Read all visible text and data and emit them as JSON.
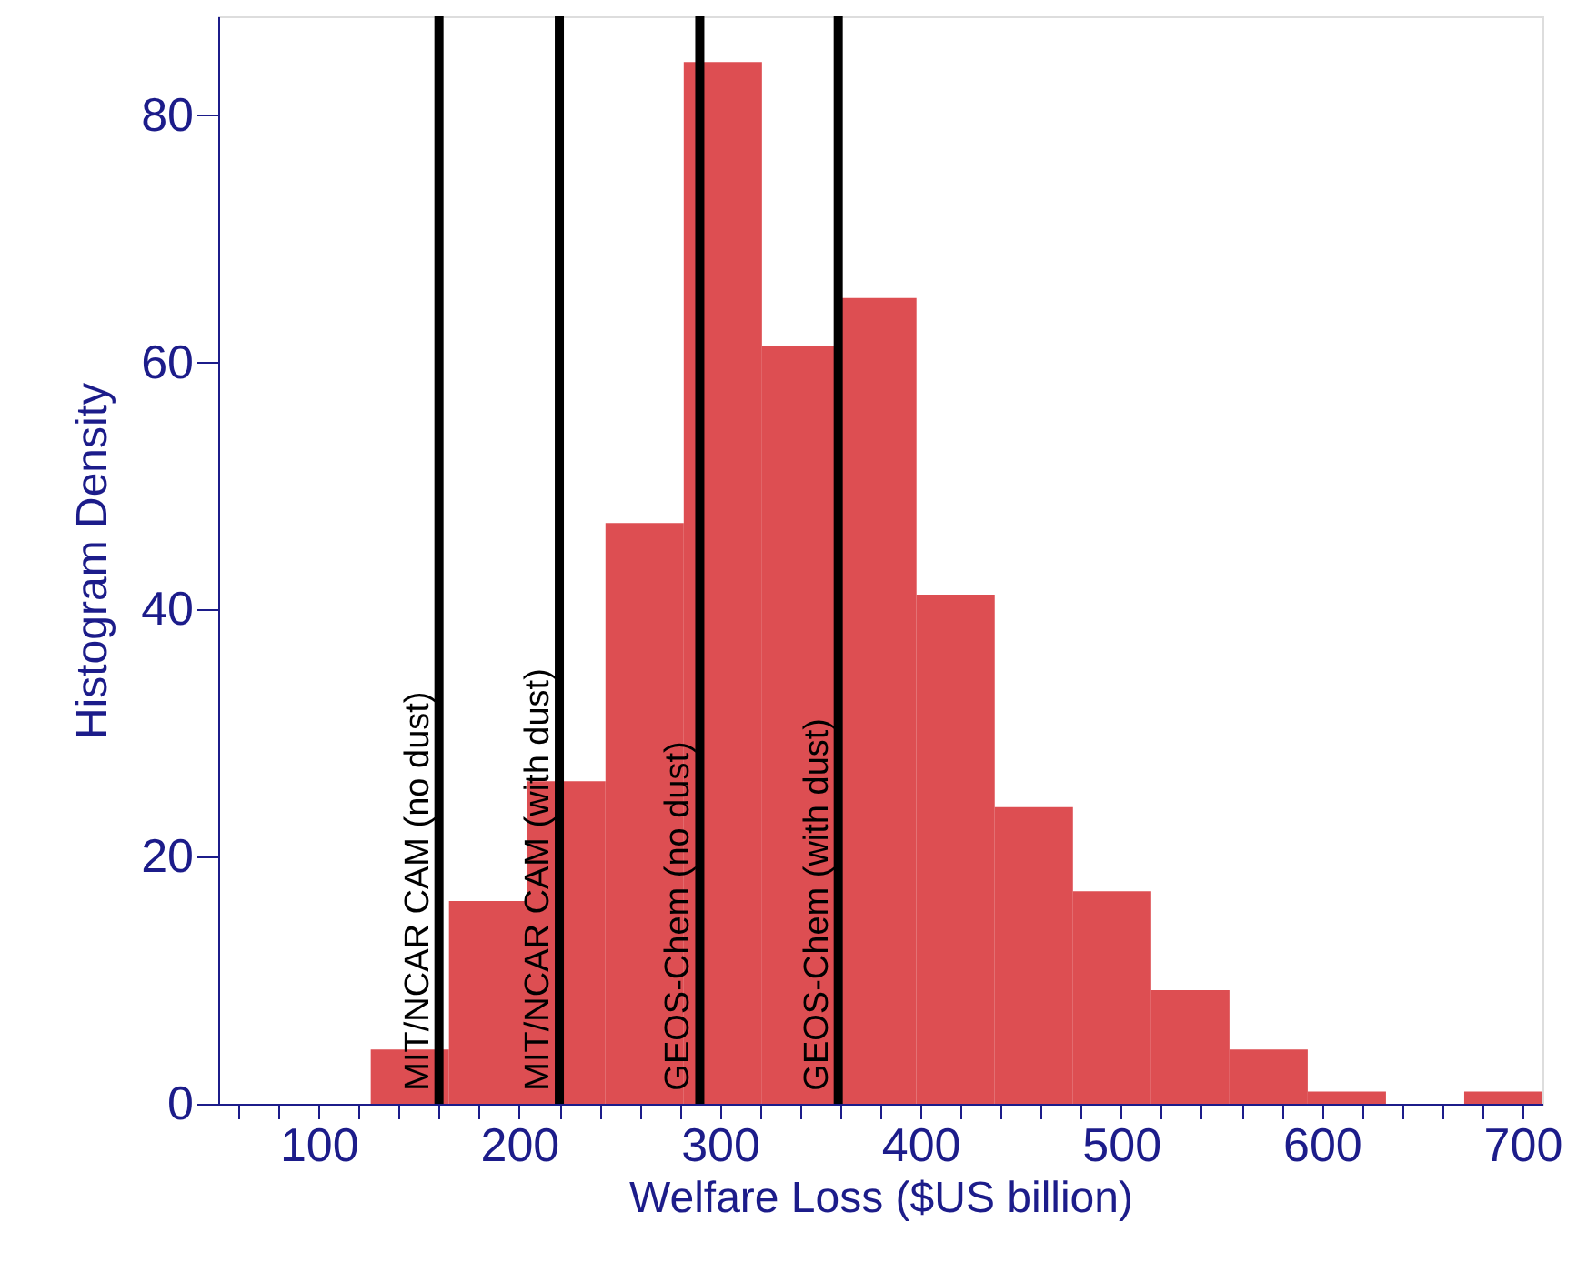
{
  "chart_data": {
    "type": "histogram",
    "xlabel": "Welfare Loss ($US billion)",
    "ylabel": "Histogram Density",
    "bins": [
      126,
      165,
      204,
      243,
      282,
      321,
      359,
      398,
      437,
      476,
      515,
      554,
      593,
      632,
      671,
      710
    ],
    "values": [
      4.4,
      16.4,
      26.1,
      47,
      84.3,
      61.3,
      65.2,
      41.2,
      24,
      17.2,
      9.2,
      4.4,
      1,
      0,
      1
    ],
    "color": "#dd4e52",
    "xlim": [
      50,
      710
    ],
    "ylim": [
      0,
      88
    ],
    "xticks": [
      {
        "value": 60,
        "label": null
      },
      {
        "value": 80,
        "label": null
      },
      100,
      {
        "value": 120,
        "label": null
      },
      {
        "value": 140,
        "label": null
      },
      {
        "value": 160,
        "label": null
      },
      {
        "value": 180,
        "label": null
      },
      200,
      {
        "value": 220,
        "label": null
      },
      {
        "value": 240,
        "label": null
      },
      {
        "value": 260,
        "label": null
      },
      {
        "value": 280,
        "label": null
      },
      300,
      {
        "value": 320,
        "label": null
      },
      {
        "value": 340,
        "label": null
      },
      {
        "value": 360,
        "label": null
      },
      {
        "value": 380,
        "label": null
      },
      400,
      {
        "value": 420,
        "label": null
      },
      {
        "value": 440,
        "label": null
      },
      {
        "value": 460,
        "label": null
      },
      {
        "value": 480,
        "label": null
      },
      500,
      {
        "value": 520,
        "label": null
      },
      {
        "value": 540,
        "label": null
      },
      {
        "value": 560,
        "label": null
      },
      {
        "value": 580,
        "label": null
      },
      600,
      {
        "value": 620,
        "label": null
      },
      {
        "value": 640,
        "label": null
      },
      {
        "value": 660,
        "label": null
      },
      {
        "value": 680,
        "label": null
      },
      700
    ],
    "yticks": [
      0,
      20,
      40,
      60,
      80
    ],
    "ref_lines": [
      {
        "axis": "x",
        "value": 160,
        "label": "MIT/NCAR CAM (no dust)",
        "color": "#000000"
      },
      {
        "axis": "x",
        "value": 220,
        "label": "MIT/NCAR CAM (with dust)",
        "color": "#000000"
      },
      {
        "axis": "x",
        "value": 290,
        "label": "GEOS-Chem (no dust)",
        "color": "#000000"
      },
      {
        "axis": "x",
        "value": 359,
        "label": "GEOS-Chem (with dust)",
        "color": "#000000"
      }
    ]
  }
}
